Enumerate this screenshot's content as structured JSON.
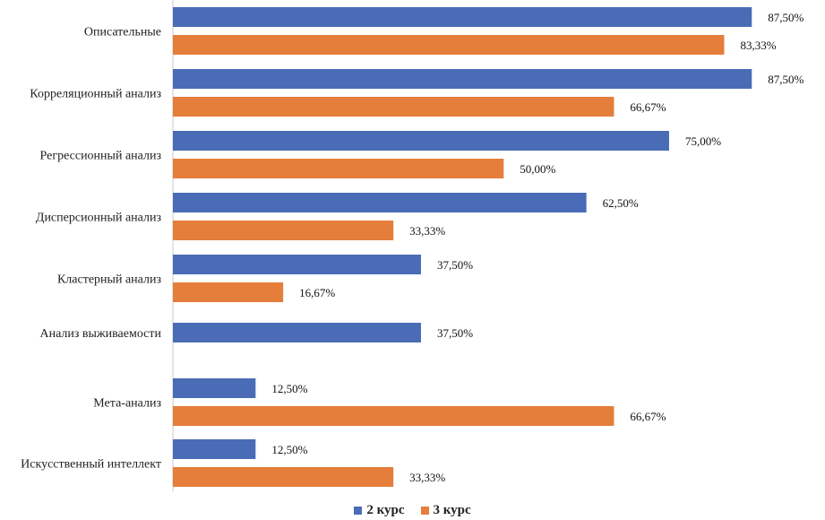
{
  "chart_data": {
    "type": "bar",
    "orientation": "horizontal",
    "categories": [
      "Описательные",
      "Корреляционный анализ",
      "Регрессионный анализ",
      "Дисперсионный анализ",
      "Кластерный анализ",
      "Анализ выживаемости",
      "Мета-анализ",
      "Искусственный интеллект"
    ],
    "series": [
      {
        "name": "2 курс",
        "color": "#4A6CB6",
        "values": [
          87.5,
          87.5,
          75.0,
          62.5,
          37.5,
          37.5,
          12.5,
          12.5
        ],
        "labels": [
          "87,50%",
          "87,50%",
          "75,00%",
          "62,50%",
          "37,50%",
          "37,50%",
          "12,50%",
          "12,50%"
        ]
      },
      {
        "name": "3 курс",
        "color": "#E57D3B",
        "values": [
          83.33,
          66.67,
          50.0,
          33.33,
          16.67,
          0,
          66.67,
          33.33
        ],
        "labels": [
          "83,33%",
          "66,67%",
          "50,00%",
          "33,33%",
          "16,67%",
          "",
          "66,67%",
          "33,33%"
        ]
      }
    ],
    "xlim": [
      0,
      100
    ],
    "grid": false,
    "legend_position": "bottom",
    "title": "",
    "xlabel": "",
    "ylabel": ""
  }
}
